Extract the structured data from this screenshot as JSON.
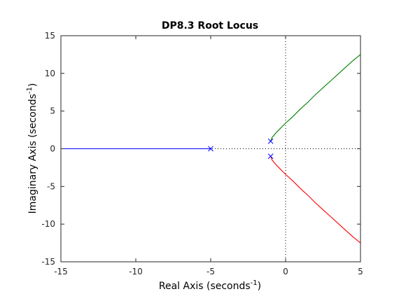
{
  "chart_data": {
    "type": "line",
    "title": "DP8.3 Root Locus",
    "xlabel": {
      "prefix": "Real Axis (seconds",
      "sup": "-1",
      "suffix": ")"
    },
    "ylabel": {
      "prefix": "Imaginary Axis (seconds",
      "sup": "-1",
      "suffix": ")"
    },
    "xlim": [
      -15,
      5
    ],
    "ylim": [
      -15,
      15
    ],
    "xticks": [
      -15,
      -10,
      -5,
      0,
      5
    ],
    "yticks": [
      -15,
      -10,
      -5,
      0,
      5,
      10,
      15
    ],
    "grid": false,
    "reference_lines": {
      "x": 0,
      "y": 0,
      "style": "dotted"
    },
    "poles": [
      {
        "x": -5,
        "y": 0
      },
      {
        "x": -1,
        "y": 1
      },
      {
        "x": -1,
        "y": -1
      }
    ],
    "series": [
      {
        "color": "#0000ff",
        "points": [
          [
            -5,
            0
          ],
          [
            -15,
            0
          ]
        ]
      },
      {
        "color": "#008000",
        "points": [
          [
            -1,
            1
          ],
          [
            -0.9,
            1.5
          ],
          [
            -0.6,
            2.2
          ],
          [
            0,
            3.4
          ],
          [
            0.5,
            4.3
          ],
          [
            1,
            5.3
          ],
          [
            1.5,
            6.2
          ],
          [
            2,
            7.2
          ],
          [
            2.5,
            8.1
          ],
          [
            3,
            9.0
          ],
          [
            3.5,
            9.9
          ],
          [
            4,
            10.8
          ],
          [
            4.5,
            11.7
          ],
          [
            5,
            12.5
          ]
        ]
      },
      {
        "color": "#ff0000",
        "points": [
          [
            -1,
            -1
          ],
          [
            -0.9,
            -1.5
          ],
          [
            -0.6,
            -2.2
          ],
          [
            0,
            -3.4
          ],
          [
            0.5,
            -4.3
          ],
          [
            1,
            -5.3
          ],
          [
            1.5,
            -6.2
          ],
          [
            2,
            -7.2
          ],
          [
            2.5,
            -8.1
          ],
          [
            3,
            -9.0
          ],
          [
            3.5,
            -9.9
          ],
          [
            4,
            -10.8
          ],
          [
            4.5,
            -11.7
          ],
          [
            5,
            -12.5
          ]
        ]
      }
    ],
    "colors": {
      "pole_marker": "#0000ff",
      "axes": "#262626",
      "reference": "#000000"
    }
  }
}
